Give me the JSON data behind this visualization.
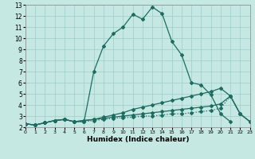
{
  "xlabel": "Humidex (Indice chaleur)",
  "xlim": [
    0,
    23
  ],
  "ylim": [
    2,
    13
  ],
  "xticks": [
    0,
    1,
    2,
    3,
    4,
    5,
    6,
    7,
    8,
    9,
    10,
    11,
    12,
    13,
    14,
    15,
    16,
    17,
    18,
    19,
    20,
    21,
    22,
    23
  ],
  "yticks": [
    2,
    3,
    4,
    5,
    6,
    7,
    8,
    9,
    10,
    11,
    12,
    13
  ],
  "bg_color": "#c5e8e2",
  "grid_color": "#9ecec6",
  "line_color": "#1e6b62",
  "lines": [
    {
      "x": [
        0,
        1,
        2,
        3,
        4,
        5,
        6,
        7,
        8,
        9,
        10,
        11,
        12,
        13,
        14,
        15,
        16,
        17,
        18,
        19,
        20,
        21
      ],
      "y": [
        2.3,
        2.2,
        2.4,
        2.6,
        2.7,
        2.5,
        2.5,
        7.0,
        9.3,
        10.4,
        11.0,
        12.15,
        11.7,
        12.8,
        12.2,
        9.7,
        8.5,
        6.0,
        5.8,
        4.9,
        3.2,
        2.5
      ],
      "style": "-",
      "lw": 0.9
    },
    {
      "x": [
        0,
        1,
        2,
        3,
        4,
        5,
        6,
        7,
        8,
        9,
        10,
        11,
        12,
        13,
        14,
        15,
        16,
        17,
        18,
        19,
        20,
        21,
        22,
        23
      ],
      "y": [
        2.3,
        2.2,
        2.4,
        2.6,
        2.7,
        2.5,
        2.6,
        2.7,
        2.9,
        3.1,
        3.3,
        3.6,
        3.8,
        4.0,
        4.2,
        4.4,
        4.6,
        4.8,
        5.0,
        5.2,
        5.5,
        4.8,
        3.2,
        2.5
      ],
      "style": "-",
      "lw": 0.9
    },
    {
      "x": [
        0,
        1,
        2,
        3,
        4,
        5,
        6,
        7,
        8,
        9,
        10,
        11,
        12,
        13,
        14,
        15,
        16,
        17,
        18,
        19,
        20,
        21,
        22,
        23
      ],
      "y": [
        2.3,
        2.2,
        2.4,
        2.6,
        2.7,
        2.5,
        2.6,
        2.7,
        2.8,
        2.9,
        3.0,
        3.1,
        3.2,
        3.3,
        3.4,
        3.5,
        3.6,
        3.7,
        3.8,
        3.9,
        4.1,
        4.8,
        3.2,
        2.5
      ],
      "style": "-",
      "lw": 0.9
    },
    {
      "x": [
        0,
        1,
        2,
        3,
        4,
        5,
        6,
        7,
        8,
        9,
        10,
        11,
        12,
        13,
        14,
        15,
        16,
        17,
        18,
        19,
        20,
        21,
        22,
        23
      ],
      "y": [
        2.3,
        2.2,
        2.4,
        2.6,
        2.7,
        2.5,
        2.5,
        2.6,
        2.7,
        2.8,
        2.85,
        2.9,
        3.0,
        3.0,
        3.1,
        3.2,
        3.2,
        3.3,
        3.4,
        3.5,
        3.7,
        4.8,
        3.2,
        2.5
      ],
      "style": ":",
      "lw": 0.9
    }
  ]
}
